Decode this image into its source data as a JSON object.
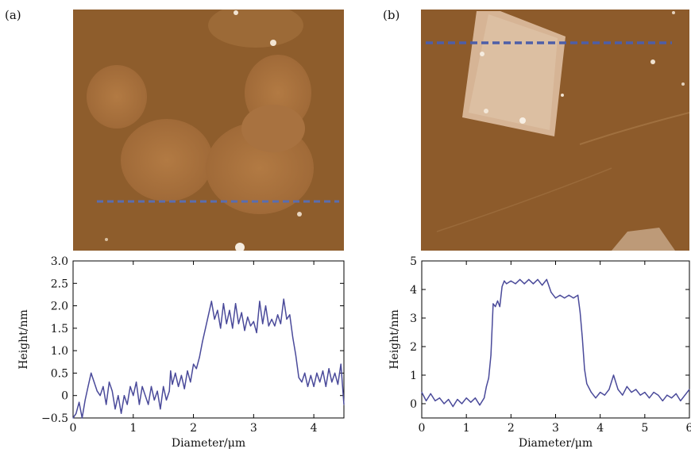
{
  "panels": [
    {
      "label": "(a)"
    },
    {
      "label": "(b)"
    }
  ],
  "afm_colors": {
    "background": "#8b5a2a",
    "grain": "#b07a45",
    "flake_b": "#d9b898",
    "dash": "#5a6db0"
  },
  "chart_data": [
    {
      "type": "line",
      "panel": "(a)",
      "xlabel": "Diameter/μm",
      "ylabel": "Height/nm",
      "xlim": [
        0,
        4.5
      ],
      "ylim": [
        -0.5,
        3.0
      ],
      "xticks": [
        "0",
        "1",
        "2",
        "3",
        "4"
      ],
      "xtick_values": [
        0,
        1,
        2,
        3,
        4
      ],
      "yticks": [
        "−0.5",
        "0",
        "0.5",
        "1.0",
        "1.5",
        "2.0",
        "2.5",
        "3.0"
      ],
      "ytick_values": [
        -0.5,
        0,
        0.5,
        1.0,
        1.5,
        2.0,
        2.5,
        3.0
      ],
      "color": "#4a4a9a",
      "x": [
        0,
        0.05,
        0.1,
        0.15,
        0.2,
        0.25,
        0.3,
        0.35,
        0.4,
        0.45,
        0.5,
        0.55,
        0.6,
        0.65,
        0.7,
        0.75,
        0.8,
        0.85,
        0.9,
        0.95,
        1.0,
        1.05,
        1.1,
        1.15,
        1.2,
        1.25,
        1.3,
        1.35,
        1.4,
        1.45,
        1.5,
        1.55,
        1.6,
        1.62,
        1.65,
        1.7,
        1.75,
        1.8,
        1.85,
        1.9,
        1.95,
        2.0,
        2.05,
        2.1,
        2.15,
        2.2,
        2.25,
        2.3,
        2.35,
        2.4,
        2.45,
        2.5,
        2.55,
        2.6,
        2.65,
        2.7,
        2.75,
        2.8,
        2.85,
        2.9,
        2.95,
        3.0,
        3.05,
        3.1,
        3.15,
        3.2,
        3.25,
        3.3,
        3.35,
        3.4,
        3.45,
        3.5,
        3.55,
        3.6,
        3.65,
        3.7,
        3.75,
        3.8,
        3.85,
        3.9,
        3.95,
        4.0,
        4.05,
        4.1,
        4.15,
        4.2,
        4.25,
        4.3,
        4.35,
        4.4,
        4.45,
        4.5
      ],
      "y": [
        -0.5,
        -0.4,
        -0.15,
        -0.5,
        -0.1,
        0.2,
        0.5,
        0.3,
        0.1,
        0.0,
        0.2,
        -0.2,
        0.3,
        0.1,
        -0.3,
        0.0,
        -0.4,
        0.0,
        -0.2,
        0.2,
        0.0,
        0.3,
        -0.2,
        0.2,
        0.0,
        -0.2,
        0.2,
        -0.1,
        0.1,
        -0.3,
        0.2,
        -0.1,
        0.1,
        0.55,
        0.25,
        0.5,
        0.2,
        0.45,
        0.15,
        0.55,
        0.3,
        0.7,
        0.6,
        0.85,
        1.2,
        1.5,
        1.8,
        2.1,
        1.7,
        1.9,
        1.5,
        2.05,
        1.6,
        1.9,
        1.5,
        2.05,
        1.6,
        1.85,
        1.45,
        1.75,
        1.55,
        1.65,
        1.4,
        2.1,
        1.6,
        2.0,
        1.55,
        1.7,
        1.55,
        1.8,
        1.6,
        2.15,
        1.7,
        1.8,
        1.3,
        0.9,
        0.4,
        0.3,
        0.5,
        0.2,
        0.45,
        0.2,
        0.5,
        0.3,
        0.55,
        0.2,
        0.6,
        0.3,
        0.5,
        0.25,
        0.7,
        -0.2
      ]
    },
    {
      "type": "line",
      "panel": "(b)",
      "xlabel": "Diameter/μm",
      "ylabel": "Height/nm",
      "xlim": [
        0,
        6
      ],
      "ylim": [
        -0.5,
        5
      ],
      "xticks": [
        "0",
        "1",
        "2",
        "3",
        "4",
        "5",
        "6"
      ],
      "xtick_values": [
        0,
        1,
        2,
        3,
        4,
        5,
        6
      ],
      "yticks": [
        "0",
        "1",
        "2",
        "3",
        "4",
        "5"
      ],
      "ytick_values": [
        0,
        1,
        2,
        3,
        4,
        5
      ],
      "color": "#4a4a9a",
      "x": [
        0,
        0.1,
        0.2,
        0.3,
        0.4,
        0.5,
        0.6,
        0.7,
        0.8,
        0.9,
        1.0,
        1.1,
        1.2,
        1.3,
        1.4,
        1.45,
        1.5,
        1.55,
        1.6,
        1.65,
        1.7,
        1.75,
        1.8,
        1.85,
        1.9,
        2.0,
        2.1,
        2.2,
        2.3,
        2.4,
        2.5,
        2.6,
        2.7,
        2.8,
        2.9,
        3.0,
        3.1,
        3.2,
        3.3,
        3.4,
        3.5,
        3.55,
        3.6,
        3.65,
        3.7,
        3.8,
        3.9,
        4.0,
        4.1,
        4.2,
        4.3,
        4.4,
        4.5,
        4.6,
        4.7,
        4.8,
        4.9,
        5.0,
        5.1,
        5.2,
        5.3,
        5.4,
        5.5,
        5.6,
        5.7,
        5.8,
        5.9,
        6.0
      ],
      "y": [
        0.4,
        0.1,
        0.35,
        0.1,
        0.2,
        0.0,
        0.15,
        -0.1,
        0.15,
        0.0,
        0.2,
        0.05,
        0.2,
        -0.05,
        0.2,
        0.6,
        0.9,
        1.7,
        3.5,
        3.4,
        3.6,
        3.4,
        4.1,
        4.3,
        4.2,
        4.3,
        4.2,
        4.35,
        4.2,
        4.35,
        4.2,
        4.35,
        4.15,
        4.35,
        3.9,
        3.7,
        3.8,
        3.7,
        3.8,
        3.7,
        3.8,
        3.2,
        2.3,
        1.2,
        0.7,
        0.4,
        0.2,
        0.4,
        0.3,
        0.5,
        1.0,
        0.5,
        0.3,
        0.6,
        0.4,
        0.5,
        0.3,
        0.4,
        0.2,
        0.4,
        0.3,
        0.1,
        0.3,
        0.2,
        0.35,
        0.1,
        0.3,
        0.5
      ]
    }
  ]
}
